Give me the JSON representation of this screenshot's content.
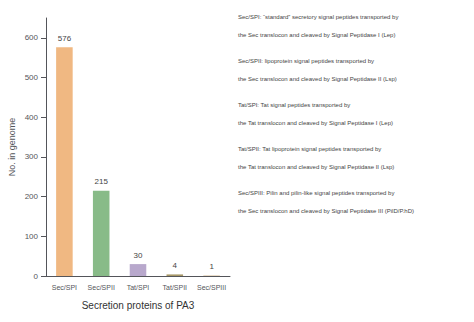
{
  "chart_data": {
    "type": "bar",
    "categories": [
      "Sec/SPI",
      "Sec/SPII",
      "Tat/SPI",
      "Tat/SPII",
      "Sec/SPIII"
    ],
    "values": [
      576,
      215,
      30,
      4,
      1
    ],
    "colors": [
      "#f0b882",
      "#88bb88",
      "#b8a8cc",
      "#a89868",
      "#c8a878"
    ],
    "xlabel": "Secretion proteins of PA3",
    "ylabel": "No. in genome",
    "ylim": [
      0,
      650
    ],
    "yticks": [
      0,
      100,
      200,
      300,
      400,
      500,
      600
    ],
    "grid": false,
    "data_labels": true,
    "annotations": [
      [
        "Sec/SPI: “standard” secretory signal peptides transported by",
        "the Sec translocon and cleaved by Signal Peptidase I (Lep)"
      ],
      [
        "Sec/SPII: lipoprotein signal peptides transported by",
        "the Sec translocon and cleaved by Signal Peptidase II (Lsp)"
      ],
      [
        "Tat/SPI: Tat signal peptides transported by",
        "the Tat translocon and cleaved by Signal Peptidase I (Lep)"
      ],
      [
        "Tat/SPII: Tat lipoprotein signal peptides transported by",
        "the Tat translocon and cleaved by Signal Peptidase II (Lsp)"
      ],
      [
        "Sec/SPIII: Pilin and pilin-like signal peptides transported by",
        "the Sec translocon and cleaved by Signal Peptidase III (PilD/P.hD)"
      ]
    ]
  }
}
